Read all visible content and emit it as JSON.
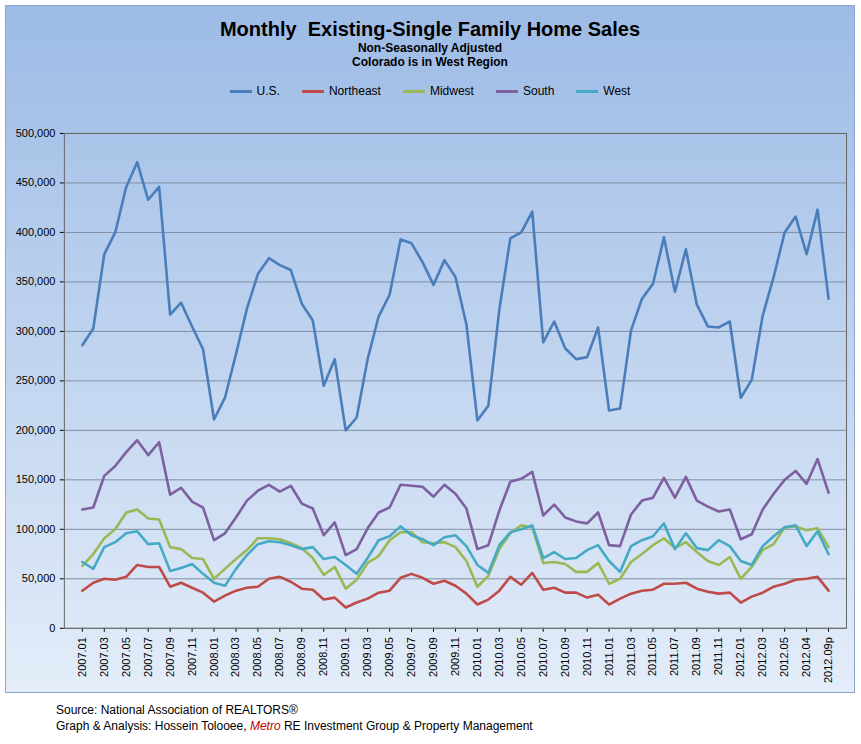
{
  "chart_data": {
    "type": "line",
    "title": "Monthly  Existing-Single Family Home Sales",
    "subtitle": [
      "Non-Seasonally Adjusted",
      "Colorado is in West Region"
    ],
    "x": [
      "2007.01",
      null,
      "2007.03",
      null,
      "2007.05",
      null,
      "2007.07",
      null,
      "2007.09",
      null,
      "2007.11",
      null,
      "2008.01",
      null,
      "2008.03",
      null,
      "2008.05",
      null,
      "2008.07",
      null,
      "2008.09",
      null,
      "2008.11",
      null,
      "2009.01",
      null,
      "2009.03",
      null,
      "2009.05",
      null,
      "2009.07",
      null,
      "2009.09",
      null,
      "2009.11",
      null,
      "2010.01",
      null,
      "2010.03",
      null,
      "2010.05",
      null,
      "2010.07",
      null,
      "2010.09",
      null,
      "2010.11",
      null,
      "2011.01",
      null,
      "2011.03",
      null,
      "2011.05",
      null,
      "2011.07",
      null,
      "2011.09",
      null,
      "2011.11",
      null,
      "2012.01",
      null,
      "2012.03",
      null,
      "2012.05",
      null,
      "2012.04",
      null,
      "2012.09p"
    ],
    "series": [
      {
        "name": "U.S.",
        "color": "#4a7ebb",
        "values": [
          286000,
          303000,
          378000,
          400000,
          446000,
          471000,
          433000,
          446000,
          317000,
          329000,
          305000,
          282000,
          211000,
          233000,
          277000,
          323000,
          358000,
          374000,
          367000,
          362000,
          328000,
          311000,
          245000,
          272000,
          200000,
          213000,
          272000,
          315000,
          337000,
          393000,
          389000,
          370000,
          347000,
          372000,
          355000,
          307000,
          210000,
          225000,
          322000,
          394000,
          400000,
          421000,
          289000,
          310000,
          283000,
          272000,
          274000,
          304000,
          220000,
          222000,
          301000,
          333000,
          348000,
          395000,
          340000,
          383000,
          327000,
          305000,
          304000,
          310000,
          233000,
          251000,
          316000,
          355000,
          400000,
          416000,
          378000,
          423000,
          333000
        ]
      },
      {
        "name": "Northeast",
        "color": "#be4b48",
        "values": [
          38000,
          46000,
          50000,
          49000,
          52000,
          64000,
          62000,
          62000,
          42000,
          46000,
          41000,
          36000,
          27000,
          33000,
          38000,
          41000,
          42000,
          50000,
          52000,
          47000,
          40000,
          39000,
          29000,
          31000,
          21000,
          26000,
          30000,
          36000,
          38000,
          51000,
          55000,
          51000,
          45000,
          48000,
          43000,
          35000,
          24000,
          29000,
          38000,
          52000,
          44000,
          56000,
          39000,
          41000,
          36000,
          36000,
          31000,
          34000,
          24000,
          30000,
          35000,
          38000,
          39000,
          45000,
          45000,
          46000,
          40000,
          37000,
          35000,
          36000,
          26000,
          32000,
          36000,
          42000,
          45000,
          49000,
          50000,
          52000,
          38000
        ]
      },
      {
        "name": "Midwest",
        "color": "#98b954",
        "values": [
          63000,
          75000,
          91000,
          100000,
          117000,
          120000,
          111000,
          110000,
          82000,
          80000,
          71000,
          70000,
          50000,
          60000,
          70000,
          79000,
          91000,
          91000,
          90000,
          86000,
          81000,
          71000,
          54000,
          62000,
          40000,
          49000,
          66000,
          73000,
          89000,
          97000,
          97000,
          87000,
          86000,
          87000,
          82000,
          68000,
          42000,
          53000,
          80000,
          96000,
          104000,
          102000,
          66000,
          67000,
          65000,
          57000,
          57000,
          66000,
          45000,
          50000,
          67000,
          75000,
          84000,
          91000,
          81000,
          87000,
          77000,
          68000,
          64000,
          72000,
          50000,
          62000,
          79000,
          85000,
          102000,
          103000,
          99000,
          101000,
          82000
        ]
      },
      {
        "name": "South",
        "color": "#7d60a0",
        "values": [
          120000,
          122000,
          154000,
          164000,
          178000,
          190000,
          175000,
          188000,
          135000,
          142000,
          128000,
          122000,
          89000,
          96000,
          112000,
          129000,
          139000,
          145000,
          138000,
          144000,
          126000,
          121000,
          94000,
          107000,
          74000,
          80000,
          101000,
          117000,
          122000,
          145000,
          144000,
          143000,
          133000,
          145000,
          136000,
          121000,
          80000,
          84000,
          119000,
          148000,
          151000,
          158000,
          114000,
          125000,
          112000,
          108000,
          106000,
          117000,
          84000,
          83000,
          115000,
          129000,
          132000,
          152000,
          132000,
          153000,
          129000,
          123000,
          118000,
          120000,
          90000,
          95000,
          120000,
          136000,
          150000,
          159000,
          146000,
          171000,
          137000
        ]
      },
      {
        "name": "West",
        "color": "#46aac5",
        "values": [
          67000,
          60000,
          82000,
          87000,
          96000,
          98000,
          85000,
          86000,
          58000,
          61000,
          65000,
          55000,
          46000,
          43000,
          60000,
          74000,
          85000,
          88000,
          87000,
          84000,
          80000,
          82000,
          70000,
          72000,
          64000,
          55000,
          71000,
          89000,
          93000,
          103000,
          94000,
          90000,
          84000,
          92000,
          94000,
          83000,
          64000,
          56000,
          84000,
          97000,
          100000,
          104000,
          71000,
          77000,
          70000,
          71000,
          79000,
          84000,
          68000,
          57000,
          83000,
          89000,
          93000,
          106000,
          80000,
          96000,
          81000,
          79000,
          89000,
          83000,
          68000,
          64000,
          83000,
          93000,
          102000,
          104000,
          83000,
          98000,
          75000
        ]
      }
    ],
    "ylim": [
      0,
      500000
    ],
    "yticks": [
      0,
      {
        "value": 50000,
        "label": "50,000"
      },
      {
        "value": 100000,
        "label": "100,000"
      },
      {
        "value": 150000,
        "label": "150,000"
      },
      {
        "value": 200000,
        "label": "200,000"
      },
      {
        "value": 250000,
        "label": "250,000"
      },
      {
        "value": 300000,
        "label": "300,000"
      },
      {
        "value": 350000,
        "label": "350,000"
      },
      {
        "value": 400000,
        "label": "400,000"
      },
      {
        "value": 450000,
        "label": "450,000"
      },
      {
        "value": 500000,
        "label": "500,000"
      }
    ],
    "grid": true,
    "legend": "top",
    "notes": [
      [
        "Source: National Association of REALTORS®"
      ],
      [
        "Graph & Analysis: Hossein Tolooee, ",
        "Metro",
        " RE Investment Group & Property Management"
      ]
    ]
  }
}
